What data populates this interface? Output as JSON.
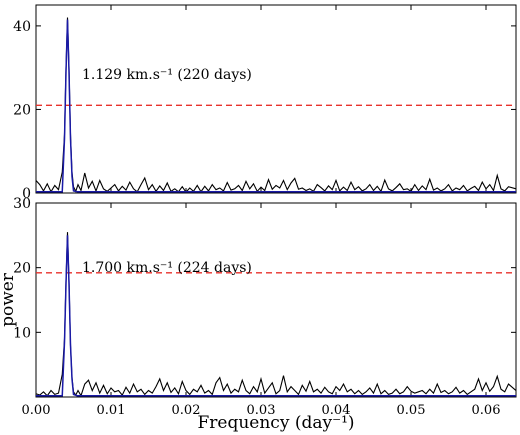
{
  "chart_data": [
    {
      "type": "line",
      "title": "",
      "xlabel": "",
      "ylabel": "",
      "xlim": [
        0.0,
        0.064
      ],
      "ylim": [
        0,
        45
      ],
      "yticks": [
        "0",
        "20",
        "40"
      ],
      "xticks": [],
      "threshold": 21,
      "annotation": "1.129 km.s⁻¹ (220 days)",
      "colors": {
        "data": "#000000",
        "fit": "#1a1aa6",
        "threshold": "#e8312b"
      },
      "series": [
        {
          "x": [
            0.0,
            0.0005,
            0.001,
            0.0015,
            0.002,
            0.0025,
            0.003,
            0.0035,
            0.0038,
            0.004,
            0.0042,
            0.0044,
            0.0046,
            0.0048,
            0.005,
            0.0053,
            0.0056,
            0.006,
            0.0065,
            0.007,
            0.0075,
            0.008,
            0.0085,
            0.009,
            0.0095,
            0.01,
            0.0105,
            0.011,
            0.0115,
            0.012,
            0.0125,
            0.013,
            0.0135,
            0.014,
            0.0145,
            0.015,
            0.0155,
            0.016,
            0.0165,
            0.017,
            0.0175,
            0.018,
            0.0185,
            0.019,
            0.0195,
            0.02,
            0.0205,
            0.021,
            0.0215,
            0.022,
            0.0225,
            0.023,
            0.0235,
            0.024,
            0.0245,
            0.025,
            0.0255,
            0.026,
            0.0265,
            0.027,
            0.0275,
            0.028,
            0.0285,
            0.029,
            0.0295,
            0.03,
            0.0305,
            0.031,
            0.0315,
            0.032,
            0.0325,
            0.033,
            0.0335,
            0.034,
            0.0345,
            0.035,
            0.0355,
            0.036,
            0.0365,
            0.037,
            0.0375,
            0.038,
            0.0385,
            0.039,
            0.0395,
            0.04,
            0.0405,
            0.041,
            0.0415,
            0.042,
            0.0425,
            0.043,
            0.0435,
            0.044,
            0.0445,
            0.045,
            0.0455,
            0.046,
            0.0465,
            0.047,
            0.0475,
            0.048,
            0.0485,
            0.049,
            0.0495,
            0.05,
            0.0505,
            0.051,
            0.0515,
            0.052,
            0.0525,
            0.053,
            0.0535,
            0.054,
            0.0545,
            0.055,
            0.0555,
            0.056,
            0.0565,
            0.057,
            0.0575,
            0.058,
            0.0585,
            0.059,
            0.0595,
            0.06,
            0.0605,
            0.061,
            0.0615,
            0.062,
            0.0625,
            0.063,
            0.064
          ],
          "y": [
            3.0,
            2.0,
            0.5,
            2.2,
            0.3,
            1.8,
            0.8,
            5.0,
            14.0,
            30.0,
            42.0,
            30.0,
            14.0,
            5.0,
            1.5,
            0.4,
            2.0,
            0.6,
            4.8,
            1.2,
            2.8,
            0.5,
            3.0,
            1.0,
            0.4,
            1.2,
            2.0,
            0.5,
            1.6,
            0.7,
            2.6,
            1.0,
            0.3,
            2.0,
            3.6,
            0.8,
            2.0,
            0.4,
            1.7,
            0.6,
            2.4,
            0.4,
            1.0,
            0.3,
            1.5,
            0.2,
            1.2,
            0.4,
            1.8,
            0.3,
            1.6,
            0.5,
            2.0,
            0.8,
            1.2,
            0.5,
            2.5,
            0.7,
            1.0,
            1.8,
            0.6,
            2.8,
            1.0,
            2.2,
            0.4,
            1.4,
            0.6,
            3.2,
            0.9,
            1.8,
            1.2,
            3.0,
            0.8,
            2.4,
            3.5,
            0.9,
            1.2,
            0.6,
            1.0,
            0.4,
            2.0,
            1.3,
            0.5,
            1.7,
            0.8,
            3.0,
            0.5,
            1.4,
            0.6,
            2.6,
            0.8,
            1.5,
            0.5,
            1.0,
            2.0,
            0.6,
            1.6,
            0.4,
            3.1,
            1.0,
            0.5,
            1.3,
            2.2,
            0.8,
            1.0,
            0.4,
            2.0,
            0.6,
            1.7,
            0.8,
            3.3,
            0.7,
            1.2,
            0.5,
            1.0,
            2.0,
            0.5,
            1.2,
            0.8,
            1.8,
            0.5,
            1.1,
            1.6,
            0.6,
            2.6,
            1.0,
            2.0,
            0.6,
            4.2,
            1.0,
            0.5,
            1.5,
            1.0
          ]
        },
        {
          "x": [
            0.0,
            0.0035,
            0.0038,
            0.004,
            0.0042,
            0.0044,
            0.0046,
            0.0048,
            0.005,
            0.0055,
            0.064
          ],
          "y": [
            0.3,
            0.3,
            13.0,
            29.0,
            41.5,
            29.0,
            13.0,
            4.0,
            0.5,
            0.3,
            0.3
          ]
        }
      ]
    },
    {
      "type": "line",
      "title": "",
      "xlabel": "Frequency (day⁻¹)",
      "ylabel": "power",
      "xlim": [
        0.0,
        0.064
      ],
      "ylim": [
        0,
        30
      ],
      "yticks": [
        "10",
        "20",
        "30"
      ],
      "xticks": [
        "0.00",
        "0.01",
        "0.02",
        "0.03",
        "0.04",
        "0.05",
        "0.06"
      ],
      "threshold": 19.2,
      "annotation": "1.700 km.s⁻¹ (224 days)",
      "colors": {
        "data": "#000000",
        "fit": "#1a1aa6",
        "threshold": "#e8312b"
      },
      "series": [
        {
          "x": [
            0.0,
            0.0005,
            0.001,
            0.0015,
            0.002,
            0.0025,
            0.003,
            0.0035,
            0.0038,
            0.004,
            0.0042,
            0.0044,
            0.0046,
            0.0048,
            0.005,
            0.0053,
            0.0056,
            0.006,
            0.0065,
            0.007,
            0.0075,
            0.008,
            0.0085,
            0.009,
            0.0095,
            0.01,
            0.0105,
            0.011,
            0.0115,
            0.012,
            0.0125,
            0.013,
            0.0135,
            0.014,
            0.0145,
            0.015,
            0.0155,
            0.016,
            0.0165,
            0.017,
            0.0175,
            0.018,
            0.0185,
            0.019,
            0.0195,
            0.02,
            0.0205,
            0.021,
            0.0215,
            0.022,
            0.0225,
            0.023,
            0.0235,
            0.024,
            0.0245,
            0.025,
            0.0255,
            0.026,
            0.0265,
            0.027,
            0.0275,
            0.028,
            0.0285,
            0.029,
            0.0295,
            0.03,
            0.0305,
            0.031,
            0.0315,
            0.032,
            0.0325,
            0.033,
            0.0335,
            0.034,
            0.0345,
            0.035,
            0.0355,
            0.036,
            0.0365,
            0.037,
            0.0375,
            0.038,
            0.0385,
            0.039,
            0.0395,
            0.04,
            0.0405,
            0.041,
            0.0415,
            0.042,
            0.0425,
            0.043,
            0.0435,
            0.044,
            0.0445,
            0.045,
            0.0455,
            0.046,
            0.0465,
            0.047,
            0.0475,
            0.048,
            0.0485,
            0.049,
            0.0495,
            0.05,
            0.0505,
            0.051,
            0.0515,
            0.052,
            0.0525,
            0.053,
            0.0535,
            0.054,
            0.0545,
            0.055,
            0.0555,
            0.056,
            0.0565,
            0.057,
            0.0575,
            0.058,
            0.0585,
            0.059,
            0.0595,
            0.06,
            0.0605,
            0.061,
            0.0615,
            0.062,
            0.0625,
            0.063,
            0.064
          ],
          "y": [
            0.5,
            0.3,
            0.8,
            0.2,
            1.0,
            0.4,
            0.6,
            3.5,
            9.0,
            18.0,
            25.5,
            18.0,
            8.0,
            3.0,
            0.8,
            0.3,
            1.0,
            0.2,
            2.0,
            2.6,
            1.0,
            2.2,
            0.6,
            1.8,
            0.5,
            1.4,
            0.8,
            1.0,
            0.3,
            1.5,
            0.6,
            2.0,
            0.8,
            1.2,
            0.4,
            1.0,
            0.6,
            1.6,
            2.8,
            1.0,
            2.2,
            0.7,
            1.4,
            0.5,
            2.4,
            1.0,
            0.4,
            1.2,
            0.8,
            1.8,
            0.6,
            1.0,
            0.4,
            2.2,
            3.0,
            1.0,
            2.0,
            0.6,
            1.2,
            0.8,
            2.6,
            1.0,
            0.5,
            1.6,
            0.8,
            2.8,
            0.6,
            1.4,
            2.2,
            0.5,
            1.0,
            3.3,
            0.8,
            1.6,
            1.0,
            0.4,
            1.8,
            0.9,
            2.4,
            0.8,
            1.2,
            0.6,
            1.5,
            0.8,
            0.5,
            1.6,
            1.0,
            2.0,
            0.8,
            1.2,
            0.5,
            1.0,
            0.4,
            0.8,
            1.4,
            0.6,
            2.0,
            0.5,
            1.0,
            0.4,
            0.6,
            1.2,
            0.5,
            0.8,
            1.6,
            0.9,
            0.6,
            0.8,
            1.0,
            0.5,
            1.2,
            0.6,
            2.0,
            0.7,
            1.0,
            0.5,
            0.8,
            1.5,
            0.6,
            1.0,
            0.4,
            0.8,
            1.2,
            2.8,
            1.0,
            2.2,
            0.9,
            1.6,
            3.2,
            1.2,
            0.8,
            2.0,
            1.0
          ]
        },
        {
          "x": [
            0.0,
            0.0035,
            0.0038,
            0.004,
            0.0042,
            0.0044,
            0.0046,
            0.0048,
            0.005,
            0.0055,
            0.064
          ],
          "y": [
            0.2,
            0.2,
            8.5,
            17.5,
            25.0,
            17.5,
            8.0,
            2.8,
            0.4,
            0.2,
            0.2
          ]
        }
      ]
    }
  ]
}
